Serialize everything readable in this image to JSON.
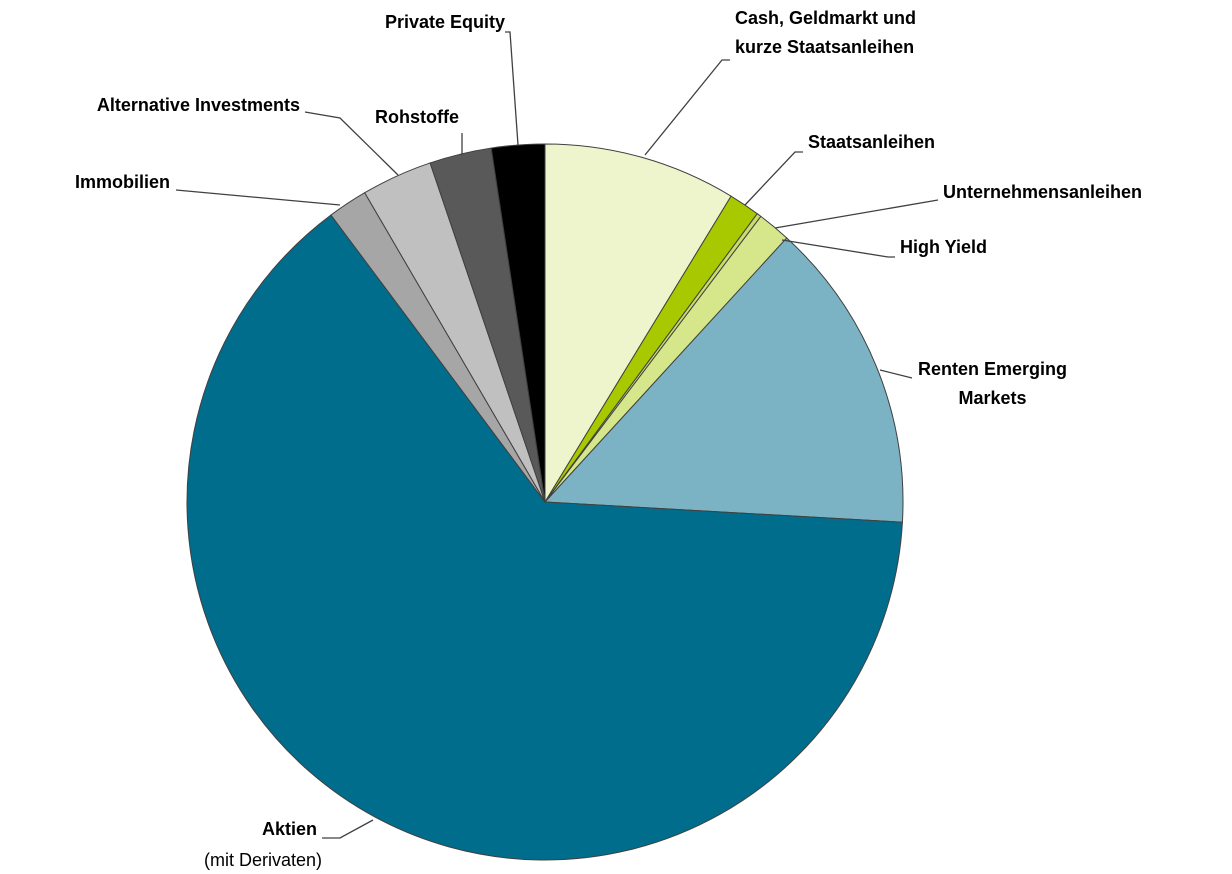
{
  "chart_data": {
    "type": "pie",
    "categories": [
      "Cash, Geldmarkt und\nkurze Staatsanleihen",
      "Staatsanleihen",
      "Unternehmensanleihen",
      "High Yield",
      "Renten Emerging\nMarkets",
      "Aktien",
      "Immobilien",
      "Alternative Investments",
      "Rohstoffe",
      "Private Equity"
    ],
    "values": [
      8.7,
      1.4,
      0.2,
      1.5,
      14.1,
      63.9,
      1.8,
      3.2,
      2.8,
      2.4
    ],
    "colors": [
      "#eef5cc",
      "#a8c800",
      "#c9dd6a",
      "#d6e68a",
      "#7bb3c4",
      "#006d8c",
      "#a6a6a6",
      "#c0c0c0",
      "#595959",
      "#000000"
    ],
    "annotations": [
      "(mit Derivaten)"
    ]
  }
}
